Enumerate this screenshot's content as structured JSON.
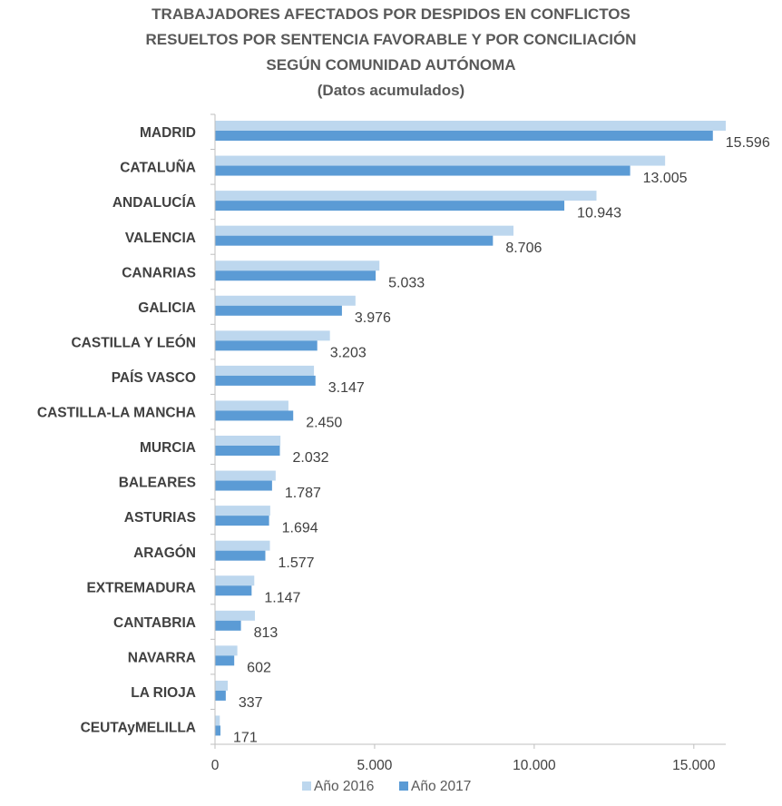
{
  "chart_data": {
    "type": "bar",
    "orientation": "horizontal",
    "title_lines": [
      "TRABAJADORES AFECTADOS POR DESPIDOS EN CONFLICTOS",
      "RESUELTOS POR SENTENCIA FAVORABLE Y POR CONCILIACIÓN",
      "SEGÚN COMUNIDAD AUTÓNOMA",
      "(Datos acumulados)"
    ],
    "categories": [
      "MADRID",
      "CATALUÑA",
      "ANDALUCÍA",
      "VALENCIA",
      "CANARIAS",
      "GALICIA",
      "CASTILLA Y LEÓN",
      "PAÍS VASCO",
      "CASTILLA-LA MANCHA",
      "MURCIA",
      "BALEARES",
      "ASTURIAS",
      "ARAGÓN",
      "EXTREMADURA",
      "CANTABRIA",
      "NAVARRA",
      "LA RIOJA",
      "CEUTAyMELILLA"
    ],
    "series": [
      {
        "name": "Año 2016",
        "color": "#BDD7EE",
        "values": [
          16000,
          14100,
          11950,
          9350,
          5150,
          4400,
          3600,
          3100,
          2300,
          2050,
          1900,
          1730,
          1720,
          1230,
          1250,
          700,
          400,
          150
        ]
      },
      {
        "name": "Año 2017",
        "color": "#5B9BD5",
        "values": [
          15596,
          13005,
          10943,
          8706,
          5033,
          3976,
          3203,
          3147,
          2450,
          2032,
          1787,
          1694,
          1577,
          1147,
          813,
          602,
          337,
          171
        ]
      }
    ],
    "data_labels": [
      "15.596",
      "13.005",
      "10.943",
      "8.706",
      "5.033",
      "3.976",
      "3.203",
      "3.147",
      "2.450",
      "2.032",
      "1.787",
      "1.694",
      "1.577",
      "1.147",
      "813",
      "602",
      "337",
      "171"
    ],
    "xlim": [
      0,
      16000
    ],
    "x_ticks": [
      0,
      5000,
      10000,
      15000
    ],
    "x_tick_labels": [
      "0",
      "5.000",
      "10.000",
      "15.000"
    ],
    "legend_position": "bottom",
    "grid": false
  }
}
